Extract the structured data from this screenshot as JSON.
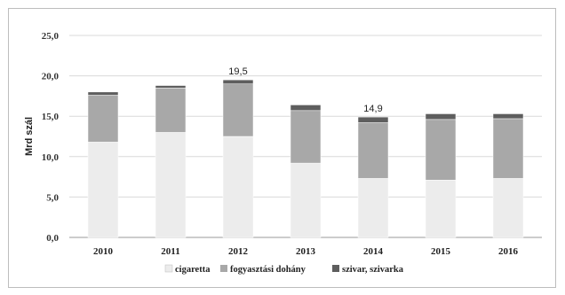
{
  "chart_data": {
    "type": "bar",
    "stacked": true,
    "ylabel": "Mrd szál",
    "xlabel": "",
    "ylim": [
      0,
      25
    ],
    "yticks": [
      "0,0",
      "5,0",
      "10,0",
      "15,0",
      "20,0",
      "25,0"
    ],
    "ytick_values": [
      0,
      5,
      10,
      15,
      20,
      25
    ],
    "grid": true,
    "legend_position": "bottom",
    "categories": [
      "2010",
      "2011",
      "2012",
      "2013",
      "2014",
      "2015",
      "2016"
    ],
    "series": [
      {
        "name": "cigaretta",
        "color": "#ececec",
        "values": [
          11.8,
          13.0,
          12.5,
          9.2,
          7.3,
          7.1,
          7.3
        ]
      },
      {
        "name": "fogyasztási dohány",
        "color": "#a8a8a8",
        "values": [
          5.8,
          5.5,
          6.5,
          6.5,
          6.9,
          7.5,
          7.4
        ]
      },
      {
        "name": "szivar, szivarka",
        "color": "#5e5e5e",
        "values": [
          0.4,
          0.3,
          0.5,
          0.7,
          0.7,
          0.7,
          0.6
        ]
      }
    ],
    "data_labels": [
      {
        "category": "2012",
        "text": "19,5"
      },
      {
        "category": "2014",
        "text": "14,9"
      }
    ]
  }
}
